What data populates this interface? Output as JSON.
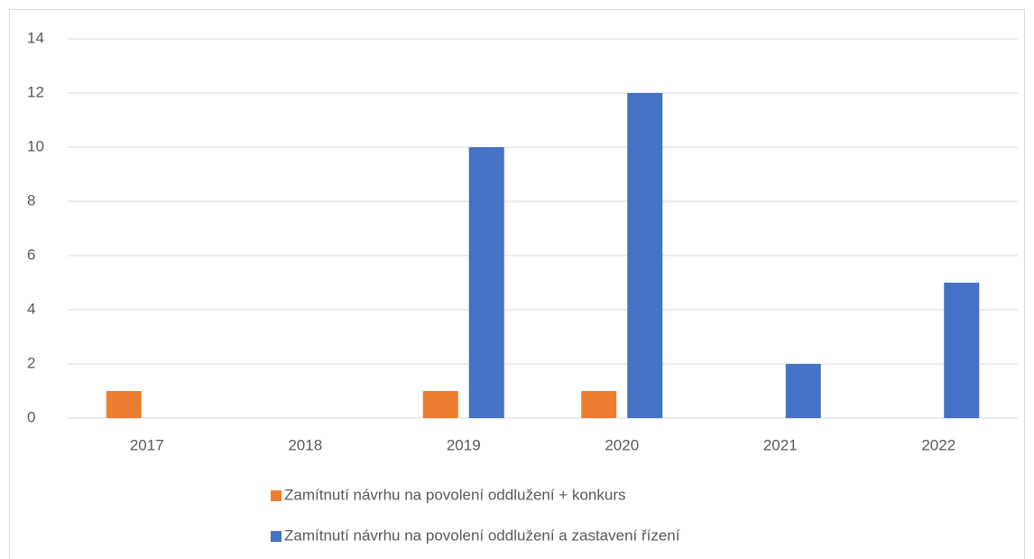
{
  "chart_data": {
    "type": "bar",
    "categories": [
      "2017",
      "2018",
      "2019",
      "2020",
      "2021",
      "2022"
    ],
    "series": [
      {
        "name": "Zamítnutí návrhu na povolení oddlužení + konkurs",
        "color": "#ed7d31",
        "values": [
          1,
          0,
          1,
          1,
          0,
          0
        ]
      },
      {
        "name": "Zamítnutí návrhu na povolení oddlužení a zastavení řízení",
        "color": "#4472c4",
        "values": [
          0,
          0,
          10,
          12,
          2,
          5
        ]
      }
    ],
    "ylim": [
      0,
      14
    ],
    "yticks": [
      0,
      2,
      4,
      6,
      8,
      10,
      12,
      14
    ],
    "grid": true,
    "legend": "bottom"
  }
}
